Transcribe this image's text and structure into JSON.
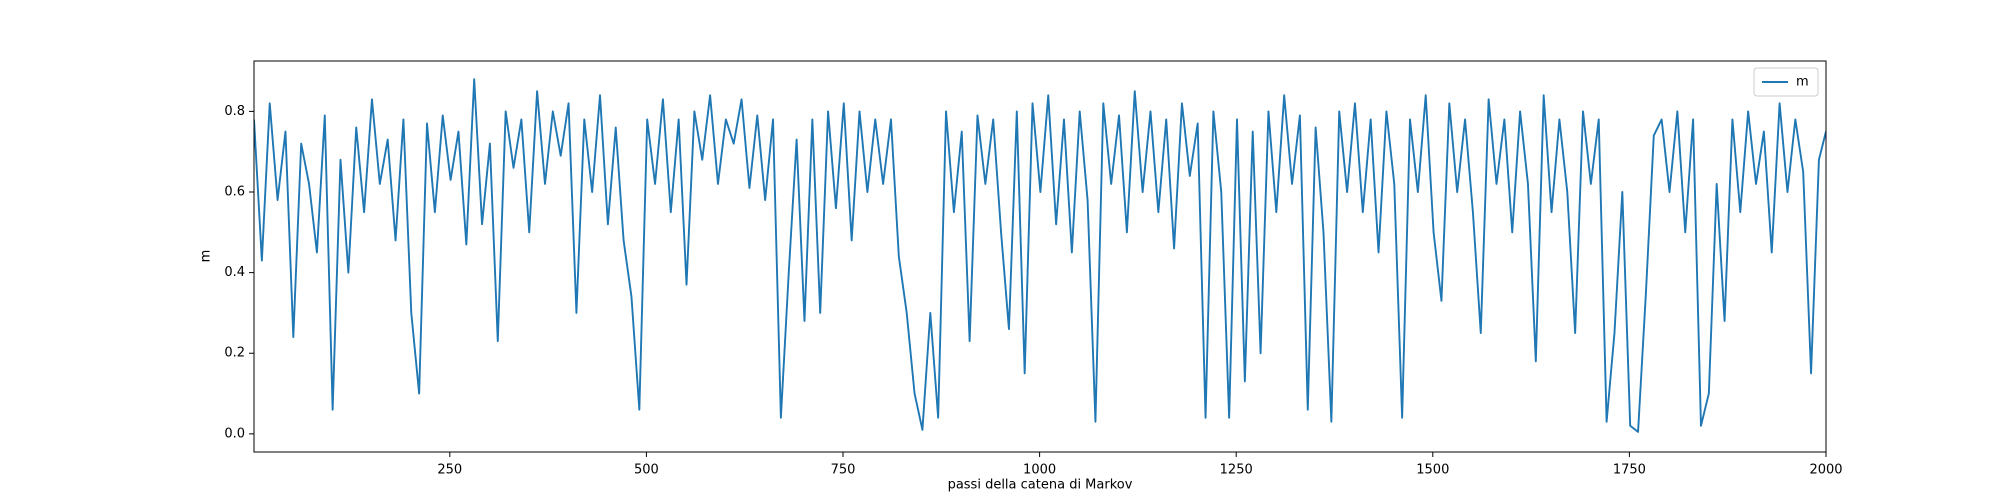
{
  "chart_data": {
    "type": "line",
    "xlabel": "passi della catena di Markov",
    "ylabel": "m",
    "x": [
      1,
      11,
      21,
      31,
      41,
      51,
      61,
      71,
      81,
      91,
      101,
      111,
      121,
      131,
      141,
      151,
      161,
      171,
      181,
      191,
      201,
      211,
      221,
      231,
      241,
      251,
      261,
      271,
      281,
      291,
      301,
      311,
      321,
      331,
      341,
      351,
      361,
      371,
      381,
      391,
      401,
      411,
      421,
      431,
      441,
      451,
      461,
      471,
      481,
      491,
      501,
      511,
      521,
      531,
      541,
      551,
      561,
      571,
      581,
      591,
      601,
      611,
      621,
      631,
      641,
      651,
      661,
      671,
      681,
      691,
      701,
      711,
      721,
      731,
      741,
      751,
      761,
      771,
      781,
      791,
      801,
      811,
      821,
      831,
      841,
      851,
      861,
      871,
      881,
      891,
      901,
      911,
      921,
      931,
      941,
      951,
      961,
      971,
      981,
      991,
      1001,
      1011,
      1021,
      1031,
      1041,
      1051,
      1061,
      1071,
      1081,
      1091,
      1101,
      1111,
      1121,
      1131,
      1141,
      1151,
      1161,
      1171,
      1181,
      1191,
      1201,
      1211,
      1221,
      1231,
      1241,
      1251,
      1261,
      1271,
      1281,
      1291,
      1301,
      1311,
      1321,
      1331,
      1341,
      1351,
      1361,
      1371,
      1381,
      1391,
      1401,
      1411,
      1421,
      1431,
      1441,
      1451,
      1461,
      1471,
      1481,
      1491,
      1501,
      1511,
      1521,
      1531,
      1541,
      1551,
      1561,
      1571,
      1581,
      1591,
      1601,
      1611,
      1621,
      1631,
      1641,
      1651,
      1661,
      1671,
      1681,
      1691,
      1701,
      1711,
      1721,
      1731,
      1741,
      1751,
      1761,
      1771,
      1781,
      1791,
      1801,
      1811,
      1821,
      1831,
      1841,
      1851,
      1861,
      1871,
      1881,
      1891,
      1901,
      1911,
      1921,
      1931,
      1941,
      1951,
      1961,
      1971,
      1981,
      1991,
      2000
    ],
    "series": [
      {
        "name": "m",
        "color": "#1f77b4",
        "values": [
          0.78,
          0.43,
          0.82,
          0.58,
          0.75,
          0.24,
          0.72,
          0.62,
          0.45,
          0.79,
          0.06,
          0.68,
          0.4,
          0.76,
          0.55,
          0.83,
          0.62,
          0.73,
          0.48,
          0.78,
          0.3,
          0.1,
          0.77,
          0.55,
          0.79,
          0.63,
          0.75,
          0.47,
          0.88,
          0.52,
          0.72,
          0.23,
          0.8,
          0.66,
          0.78,
          0.5,
          0.85,
          0.62,
          0.8,
          0.69,
          0.82,
          0.3,
          0.78,
          0.6,
          0.84,
          0.52,
          0.76,
          0.48,
          0.34,
          0.06,
          0.78,
          0.62,
          0.83,
          0.55,
          0.78,
          0.37,
          0.8,
          0.68,
          0.84,
          0.62,
          0.78,
          0.72,
          0.83,
          0.61,
          0.79,
          0.58,
          0.78,
          0.04,
          0.4,
          0.73,
          0.28,
          0.78,
          0.3,
          0.8,
          0.56,
          0.82,
          0.48,
          0.8,
          0.6,
          0.78,
          0.62,
          0.78,
          0.44,
          0.3,
          0.1,
          0.01,
          0.3,
          0.04,
          0.8,
          0.55,
          0.75,
          0.23,
          0.79,
          0.62,
          0.78,
          0.5,
          0.26,
          0.8,
          0.15,
          0.82,
          0.6,
          0.84,
          0.52,
          0.78,
          0.45,
          0.8,
          0.58,
          0.03,
          0.82,
          0.62,
          0.79,
          0.5,
          0.85,
          0.6,
          0.8,
          0.55,
          0.78,
          0.46,
          0.82,
          0.64,
          0.77,
          0.04,
          0.8,
          0.6,
          0.04,
          0.78,
          0.13,
          0.75,
          0.2,
          0.8,
          0.55,
          0.84,
          0.62,
          0.79,
          0.06,
          0.76,
          0.5,
          0.03,
          0.8,
          0.6,
          0.82,
          0.55,
          0.78,
          0.45,
          0.8,
          0.62,
          0.04,
          0.78,
          0.6,
          0.84,
          0.5,
          0.33,
          0.82,
          0.6,
          0.78,
          0.55,
          0.25,
          0.83,
          0.62,
          0.78,
          0.5,
          0.8,
          0.62,
          0.18,
          0.84,
          0.55,
          0.78,
          0.6,
          0.25,
          0.8,
          0.62,
          0.78,
          0.03,
          0.25,
          0.6,
          0.02,
          0.005,
          0.35,
          0.74,
          0.78,
          0.6,
          0.8,
          0.5,
          0.78,
          0.02,
          0.1,
          0.62,
          0.28,
          0.78,
          0.55,
          0.8,
          0.62,
          0.75,
          0.45,
          0.82,
          0.6,
          0.78,
          0.65,
          0.15,
          0.68,
          0.75
        ]
      }
    ],
    "xlim": [
      1,
      2000
    ],
    "ylim": [
      -0.045,
      0.925
    ],
    "xticks": [
      250,
      500,
      750,
      1000,
      1250,
      1500,
      1750,
      2000
    ],
    "yticks": [
      {
        "value": 0,
        "label": "0.0"
      },
      0.2,
      0.4,
      0.6,
      0.8
    ],
    "legend": "upper right"
  }
}
